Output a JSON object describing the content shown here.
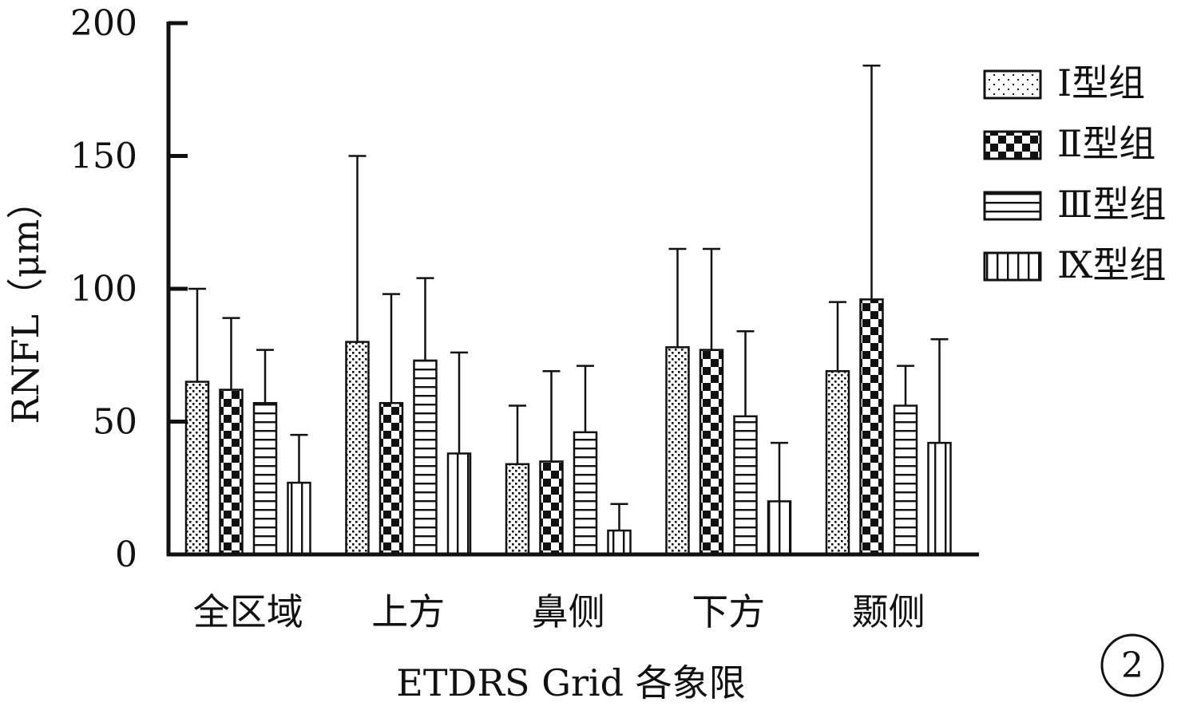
{
  "chart_data": {
    "type": "bar",
    "xlabel": "ETDRS Grid 各象限",
    "ylabel": "RNFL（μm）",
    "ylim": [
      0,
      200
    ],
    "yticks": [
      0,
      50,
      100,
      150,
      200
    ],
    "categories": [
      "全区域",
      "上方",
      "鼻侧",
      "下方",
      "颞侧"
    ],
    "series": [
      {
        "name": "Ⅰ型组",
        "pattern": "dots",
        "values": [
          65,
          80,
          34,
          78,
          69
        ],
        "errors": [
          35,
          70,
          22,
          37,
          26
        ]
      },
      {
        "name": "Ⅱ型组",
        "pattern": "checker",
        "values": [
          62,
          57,
          35,
          77,
          96
        ],
        "errors": [
          27,
          41,
          34,
          38,
          88
        ]
      },
      {
        "name": "Ⅲ型组",
        "pattern": "hlines",
        "values": [
          57,
          73,
          46,
          52,
          56
        ],
        "errors": [
          20,
          31,
          25,
          32,
          15
        ]
      },
      {
        "name": "Ⅸ型组",
        "pattern": "vlines",
        "values": [
          27,
          38,
          9,
          20,
          42
        ],
        "errors": [
          18,
          38,
          10,
          22,
          39
        ]
      }
    ],
    "legend_position": "top-right",
    "grid": false,
    "panel_label": "2"
  }
}
